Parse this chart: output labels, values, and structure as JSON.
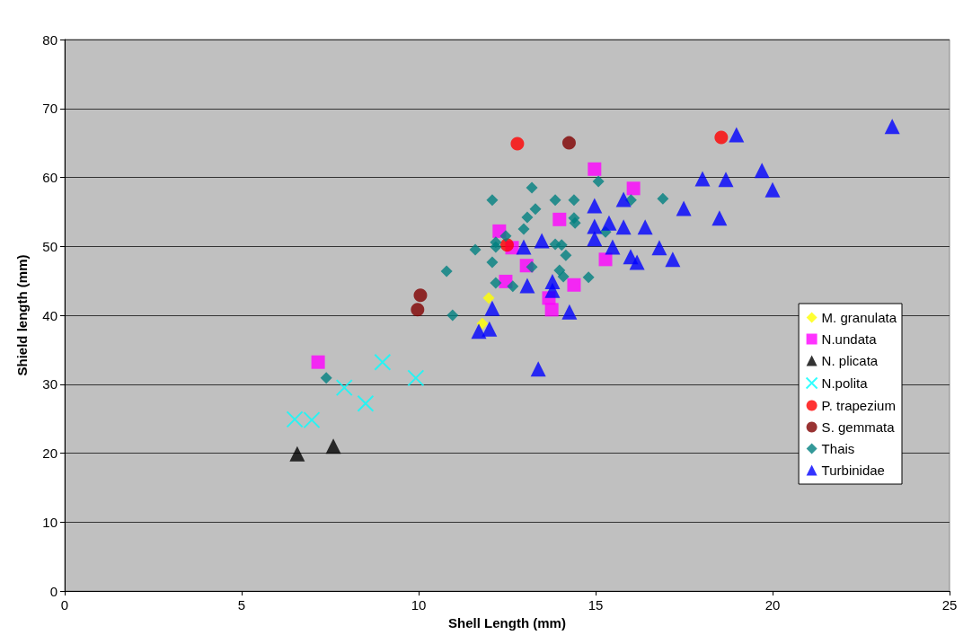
{
  "chart_data": {
    "type": "scatter",
    "xlabel": "Shell Length (mm)",
    "ylabel": "Shield length (mm)",
    "xlim": [
      0,
      25
    ],
    "xticks": [
      0,
      5,
      10,
      15,
      20,
      25
    ],
    "ylim": [
      0,
      80
    ],
    "yticks": [
      0,
      10,
      20,
      30,
      40,
      50,
      60,
      70,
      80
    ],
    "grid": "y",
    "legend": "right",
    "series": [
      {
        "name": "M. granulata",
        "color": "#ffff00",
        "marker": "diamond",
        "x": [
          11.98,
          11.8
        ],
        "values": [
          42.5,
          38.8
        ]
      },
      {
        "name": "N.undata",
        "color": "#ff00ff",
        "marker": "square",
        "x": [
          7.16,
          12.28,
          13.98,
          12.64,
          13.05,
          12.46,
          14.39,
          13.68,
          13.76,
          14.97,
          16.07,
          15.28
        ],
        "values": [
          33.2,
          52.2,
          53.9,
          49.8,
          47.2,
          44.9,
          44.4,
          42.5,
          40.8,
          61.2,
          58.4,
          48.1
        ]
      },
      {
        "name": "N. plicata",
        "color": "#000000",
        "marker": "triangle",
        "x": [
          6.57,
          7.59
        ],
        "values": [
          19.9,
          21.0
        ]
      },
      {
        "name": "N.polita",
        "color": "#00ffff",
        "marker": "cross",
        "x": [
          6.5,
          6.98,
          7.9,
          8.5,
          8.98,
          9.92
        ],
        "values": [
          24.9,
          24.8,
          29.5,
          27.2,
          33.2,
          30.9
        ]
      },
      {
        "name": "P. trapezium",
        "color": "#ff0000",
        "marker": "circle",
        "x": [
          12.79,
          18.55,
          12.5
        ],
        "values": [
          64.9,
          65.8,
          50.2
        ]
      },
      {
        "name": "S. gemmata",
        "color": "#800000",
        "marker": "circle",
        "x": [
          14.25,
          10.05,
          9.97
        ],
        "values": [
          65.0,
          42.9,
          40.8
        ]
      },
      {
        "name": "Thais",
        "color": "#008080",
        "marker": "diamond",
        "x": [
          13.2,
          12.08,
          13.86,
          14.39,
          15.08,
          16.9,
          13.3,
          13.07,
          14.39,
          14.42,
          12.97,
          12.46,
          12.18,
          12.18,
          11.6,
          13.86,
          14.04,
          14.16,
          12.08,
          13.2,
          13.98,
          14.09,
          14.8,
          12.18,
          12.66,
          10.79,
          10.96,
          15.28,
          16.0,
          7.39
        ],
        "values": [
          58.5,
          56.7,
          56.7,
          56.7,
          59.4,
          56.9,
          55.4,
          54.2,
          54.1,
          53.4,
          52.5,
          51.5,
          50.6,
          49.9,
          49.5,
          50.3,
          50.2,
          48.7,
          47.7,
          47.0,
          46.5,
          45.6,
          45.5,
          44.7,
          44.2,
          46.4,
          40.0,
          52.1,
          56.7,
          30.9
        ]
      },
      {
        "name": "Turbinidae",
        "color": "#0000ff",
        "marker": "triangle",
        "x": [
          12.97,
          13.48,
          13.07,
          13.78,
          13.78,
          14.26,
          12.08,
          11.7,
          12.0,
          13.38,
          14.97,
          14.97,
          14.97,
          15.38,
          15.48,
          15.79,
          16.4,
          15.79,
          15.99,
          16.17,
          16.8,
          17.18,
          18.02,
          18.68,
          19.7,
          20.0,
          18.98,
          23.38,
          17.49,
          18.5
        ],
        "values": [
          49.9,
          50.8,
          44.3,
          44.9,
          43.6,
          40.5,
          41.0,
          37.7,
          38.0,
          32.2,
          55.9,
          52.9,
          51.1,
          53.4,
          49.9,
          52.8,
          52.8,
          56.8,
          48.5,
          47.7,
          49.8,
          48.1,
          59.8,
          59.7,
          61.0,
          58.2,
          66.2,
          67.4,
          55.5,
          54.1
        ]
      }
    ]
  }
}
